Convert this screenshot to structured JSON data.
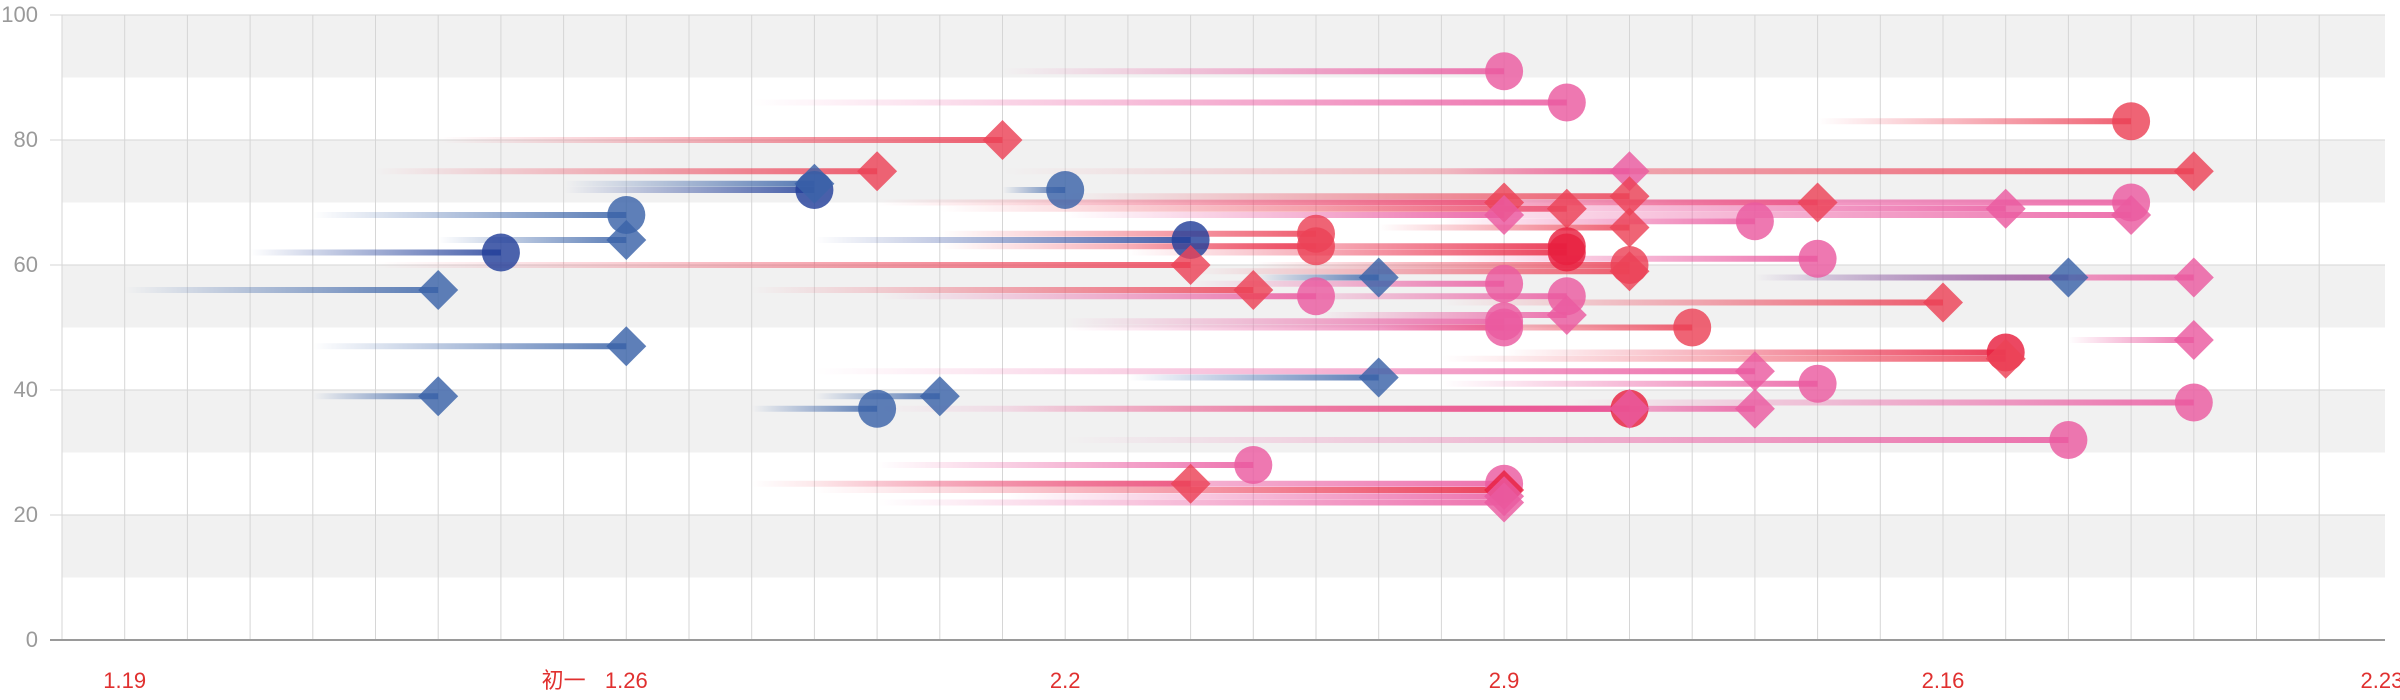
{
  "chart_data": {
    "type": "scatter",
    "description_free": true,
    "ylim": [
      0,
      100
    ],
    "yticks": [
      0,
      20,
      40,
      60,
      80,
      100
    ],
    "x_slots": 36,
    "x_tick_labels": [
      {
        "slot": 1,
        "label": "1.19"
      },
      {
        "slot": 8,
        "label": "初一"
      },
      {
        "slot": 9,
        "label": "1.26"
      },
      {
        "slot": 16,
        "label": "2.2"
      },
      {
        "slot": 23,
        "label": "2.9"
      },
      {
        "slot": 30,
        "label": "2.16"
      },
      {
        "slot": 37,
        "label": "2.23"
      }
    ],
    "grid": true,
    "colors": {
      "blue": "#3a63a8",
      "navy": "#23409a",
      "red": "#ec4257",
      "crimson": "#e8203f",
      "pink": "#ea5aa0",
      "band": "#f1f1f1",
      "grid": "#d6d6d6",
      "axis": "#9a9a9a"
    },
    "points": [
      {
        "start": 1,
        "end": 6,
        "y": 56,
        "shape": "diamond",
        "color": "blue"
      },
      {
        "start": 4,
        "end": 6,
        "y": 39,
        "shape": "diamond",
        "color": "blue"
      },
      {
        "start": 4,
        "end": 9,
        "y": 47,
        "shape": "diamond",
        "color": "blue"
      },
      {
        "start": 3,
        "end": 7,
        "y": 62,
        "shape": "circle",
        "color": "navy"
      },
      {
        "start": 4,
        "end": 9,
        "y": 68,
        "shape": "circle",
        "color": "blue"
      },
      {
        "start": 6,
        "end": 9,
        "y": 64,
        "shape": "diamond",
        "color": "blue"
      },
      {
        "start": 8,
        "end": 12,
        "y": 72,
        "shape": "circle",
        "color": "navy"
      },
      {
        "start": 8,
        "end": 12,
        "y": 73,
        "shape": "diamond",
        "color": "blue"
      },
      {
        "start": 11,
        "end": 13,
        "y": 37,
        "shape": "circle",
        "color": "blue"
      },
      {
        "start": 12,
        "end": 14,
        "y": 39,
        "shape": "diamond",
        "color": "blue"
      },
      {
        "start": 15,
        "end": 16,
        "y": 72,
        "shape": "circle",
        "color": "blue"
      },
      {
        "start": 12,
        "end": 18,
        "y": 64,
        "shape": "circle",
        "color": "navy"
      },
      {
        "start": 17,
        "end": 21,
        "y": 42,
        "shape": "diamond",
        "color": "blue"
      },
      {
        "start": 19,
        "end": 21,
        "y": 58,
        "shape": "diamond",
        "color": "blue"
      },
      {
        "start": 27,
        "end": 32,
        "y": 58,
        "shape": "diamond",
        "color": "blue"
      },
      {
        "start": 6,
        "end": 15,
        "y": 80,
        "shape": "diamond",
        "color": "red"
      },
      {
        "start": 5,
        "end": 13,
        "y": 75,
        "shape": "diamond",
        "color": "red"
      },
      {
        "start": 15,
        "end": 34,
        "y": 75,
        "shape": "diamond",
        "color": "red"
      },
      {
        "start": 28,
        "end": 33,
        "y": 83,
        "shape": "circle",
        "color": "red"
      },
      {
        "start": 15,
        "end": 23,
        "y": 91,
        "shape": "circle",
        "color": "pink"
      },
      {
        "start": 11,
        "end": 24,
        "y": 86,
        "shape": "circle",
        "color": "pink"
      },
      {
        "start": 22,
        "end": 25,
        "y": 75,
        "shape": "diamond",
        "color": "pink"
      },
      {
        "start": 13,
        "end": 23,
        "y": 70,
        "shape": "diamond",
        "color": "red"
      },
      {
        "start": 14,
        "end": 24,
        "y": 69,
        "shape": "diamond",
        "color": "red"
      },
      {
        "start": 16,
        "end": 25,
        "y": 71,
        "shape": "diamond",
        "color": "red"
      },
      {
        "start": 22,
        "end": 28,
        "y": 70,
        "shape": "diamond",
        "color": "red"
      },
      {
        "start": 15,
        "end": 33,
        "y": 70,
        "shape": "circle",
        "color": "pink"
      },
      {
        "start": 20,
        "end": 31,
        "y": 69,
        "shape": "diamond",
        "color": "pink"
      },
      {
        "start": 20,
        "end": 33,
        "y": 68,
        "shape": "diamond",
        "color": "pink"
      },
      {
        "start": 16,
        "end": 23,
        "y": 68,
        "shape": "diamond",
        "color": "pink"
      },
      {
        "start": 22,
        "end": 27,
        "y": 67,
        "shape": "circle",
        "color": "pink"
      },
      {
        "start": 21,
        "end": 25,
        "y": 66,
        "shape": "diamond",
        "color": "red"
      },
      {
        "start": 14,
        "end": 20,
        "y": 65,
        "shape": "circle",
        "color": "red"
      },
      {
        "start": 14,
        "end": 20,
        "y": 63,
        "shape": "circle",
        "color": "red"
      },
      {
        "start": 17,
        "end": 24,
        "y": 63,
        "shape": "circle",
        "color": "crimson"
      },
      {
        "start": 17,
        "end": 24,
        "y": 62,
        "shape": "circle",
        "color": "crimson"
      },
      {
        "start": 22,
        "end": 28,
        "y": 61,
        "shape": "circle",
        "color": "pink"
      },
      {
        "start": 19,
        "end": 25,
        "y": 60,
        "shape": "circle",
        "color": "red"
      },
      {
        "start": 18,
        "end": 25,
        "y": 59,
        "shape": "diamond",
        "color": "red"
      },
      {
        "start": 5,
        "end": 18,
        "y": 60,
        "shape": "diamond",
        "color": "red"
      },
      {
        "start": 11,
        "end": 19,
        "y": 56,
        "shape": "diamond",
        "color": "red"
      },
      {
        "start": 13,
        "end": 20,
        "y": 55,
        "shape": "circle",
        "color": "pink"
      },
      {
        "start": 18,
        "end": 23,
        "y": 57,
        "shape": "circle",
        "color": "pink"
      },
      {
        "start": 19,
        "end": 24,
        "y": 55,
        "shape": "circle",
        "color": "pink"
      },
      {
        "start": 20,
        "end": 24,
        "y": 52,
        "shape": "diamond",
        "color": "pink"
      },
      {
        "start": 22,
        "end": 30,
        "y": 54,
        "shape": "diamond",
        "color": "red"
      },
      {
        "start": 27,
        "end": 34,
        "y": 58,
        "shape": "diamond",
        "color": "pink"
      },
      {
        "start": 16,
        "end": 23,
        "y": 51,
        "shape": "circle",
        "color": "pink"
      },
      {
        "start": 16,
        "end": 23,
        "y": 50,
        "shape": "circle",
        "color": "pink"
      },
      {
        "start": 21,
        "end": 26,
        "y": 50,
        "shape": "circle",
        "color": "red"
      },
      {
        "start": 32,
        "end": 34,
        "y": 48,
        "shape": "diamond",
        "color": "pink"
      },
      {
        "start": 23,
        "end": 31,
        "y": 46,
        "shape": "circle",
        "color": "crimson"
      },
      {
        "start": 22,
        "end": 31,
        "y": 45,
        "shape": "diamond",
        "color": "red"
      },
      {
        "start": 12,
        "end": 27,
        "y": 43,
        "shape": "diamond",
        "color": "pink"
      },
      {
        "start": 22,
        "end": 28,
        "y": 41,
        "shape": "circle",
        "color": "pink"
      },
      {
        "start": 15,
        "end": 25,
        "y": 37,
        "shape": "circle",
        "color": "crimson"
      },
      {
        "start": 13,
        "end": 25,
        "y": 37,
        "shape": "diamond",
        "color": "pink"
      },
      {
        "start": 22,
        "end": 27,
        "y": 37,
        "shape": "diamond",
        "color": "pink"
      },
      {
        "start": 24,
        "end": 34,
        "y": 38,
        "shape": "circle",
        "color": "pink"
      },
      {
        "start": 16,
        "end": 32,
        "y": 32,
        "shape": "circle",
        "color": "pink"
      },
      {
        "start": 13,
        "end": 19,
        "y": 28,
        "shape": "circle",
        "color": "pink"
      },
      {
        "start": 11,
        "end": 18,
        "y": 25,
        "shape": "diamond",
        "color": "red"
      },
      {
        "start": 12,
        "end": 23,
        "y": 25,
        "shape": "circle",
        "color": "pink"
      },
      {
        "start": 12,
        "end": 23,
        "y": 24,
        "shape": "diamond",
        "color": "crimson"
      },
      {
        "start": 15,
        "end": 23,
        "y": 23,
        "shape": "diamond",
        "color": "pink"
      },
      {
        "start": 13,
        "end": 23,
        "y": 22,
        "shape": "diamond",
        "color": "pink"
      }
    ]
  }
}
